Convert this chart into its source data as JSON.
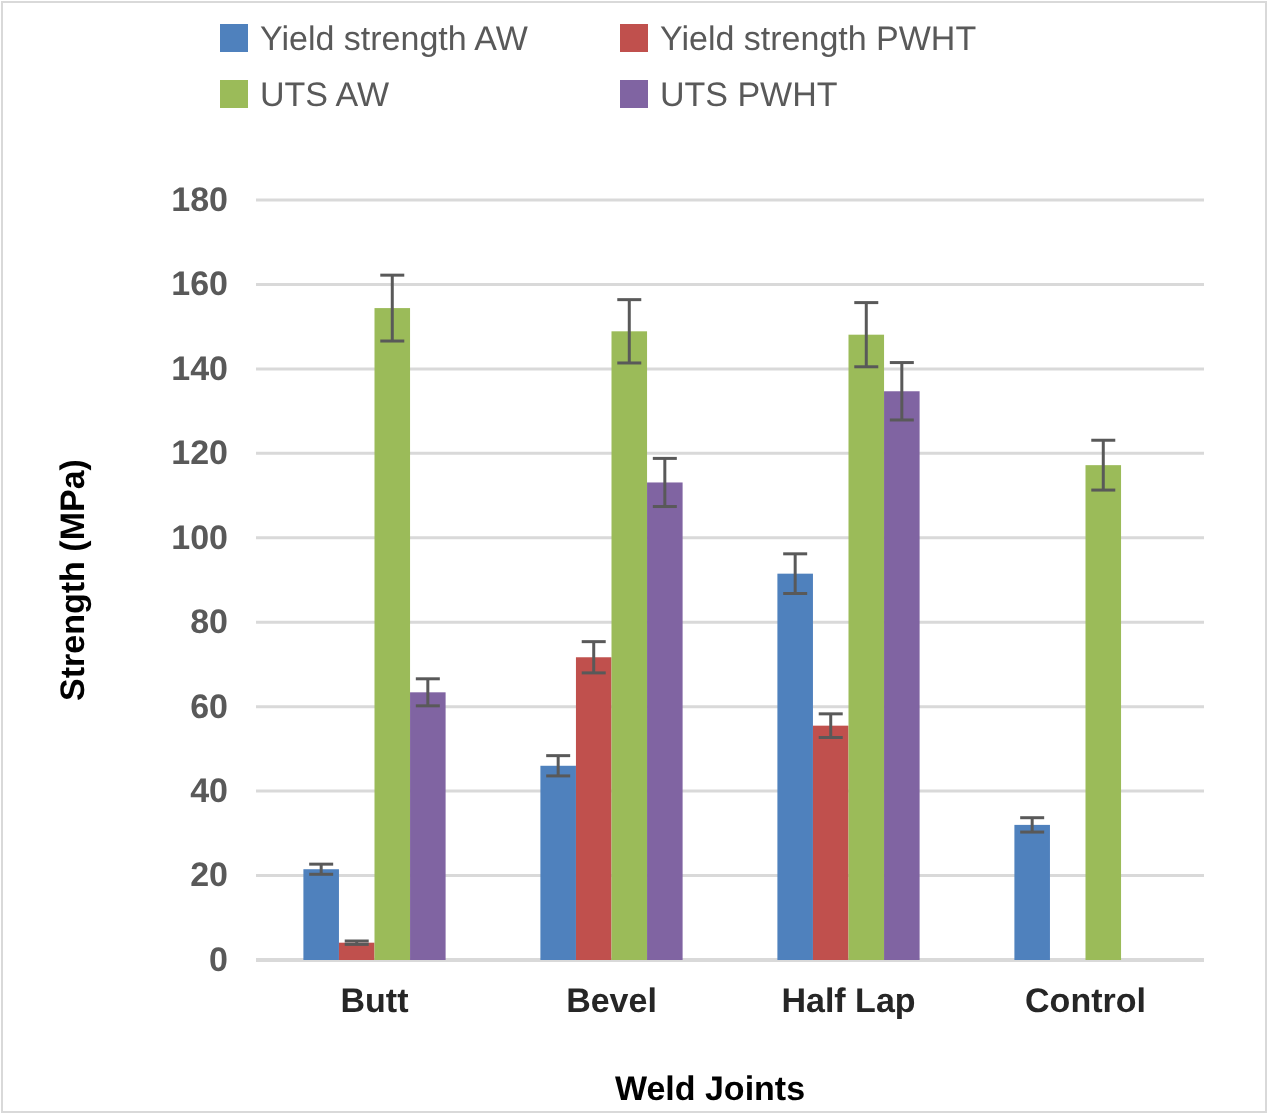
{
  "chart_data": {
    "type": "bar",
    "xlabel": "Weld Joints",
    "ylabel": "Strength (MPa)",
    "categories": [
      "Butt",
      "Bevel",
      "Half Lap",
      "Control"
    ],
    "series": [
      {
        "name": "Yield strength AW",
        "color": "#4f81bd",
        "values": [
          21.5,
          46.0,
          91.5,
          32.0
        ],
        "errors": [
          1.2,
          2.4,
          4.7,
          1.7
        ]
      },
      {
        "name": "Yield strength PWHT",
        "color": "#c0504d",
        "values": [
          4.1,
          71.7,
          55.5,
          null
        ],
        "errors": [
          0.4,
          3.7,
          2.8,
          null
        ]
      },
      {
        "name": "UTS AW",
        "color": "#9bbb59",
        "values": [
          154.4,
          148.9,
          148.1,
          117.2
        ],
        "errors": [
          7.8,
          7.5,
          7.6,
          5.9
        ]
      },
      {
        "name": "UTS PWHT",
        "color": "#8064a2",
        "values": [
          63.4,
          113.1,
          134.7,
          null
        ],
        "errors": [
          3.2,
          5.7,
          6.8,
          null
        ]
      }
    ],
    "ylim": [
      0,
      180
    ],
    "yticks": [
      0,
      20,
      40,
      60,
      80,
      100,
      120,
      140,
      160,
      180
    ],
    "grid": "y",
    "legend": "top"
  }
}
